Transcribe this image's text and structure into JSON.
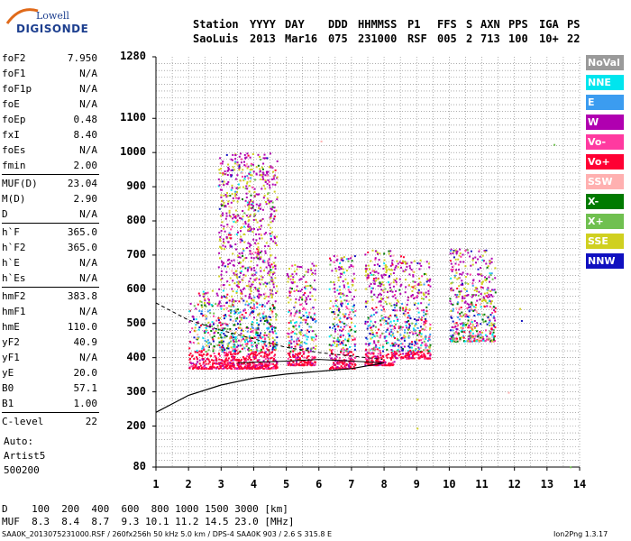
{
  "logo": {
    "line1": "Lowell",
    "line2": "DIGISONDE"
  },
  "header": {
    "station_label": "Station",
    "station": "SaoLuis",
    "yyyy_label": "YYYY",
    "yyyy": "2013",
    "day_label": "DAY",
    "day": "Mar16",
    "ddd_label": "DDD",
    "ddd": "075",
    "hhmmss_label": "HHMMSS",
    "hhmmss": "231000",
    "p1_label": "P1",
    "p1": "RSF",
    "ffs_label": "FFS",
    "ffs": "005",
    "s_label": "S",
    "s": "2",
    "axn_label": "AXN",
    "axn": "713",
    "pps_label": "PPS",
    "pps": "100",
    "iga_label": "IGA",
    "iga": "10+",
    "ps_label": "PS",
    "ps": "22"
  },
  "params": [
    {
      "k": "foF2",
      "v": "7.950"
    },
    {
      "k": "foF1",
      "v": "N/A"
    },
    {
      "k": "foF1p",
      "v": "N/A"
    },
    {
      "k": "foE",
      "v": "N/A"
    },
    {
      "k": "foEp",
      "v": "0.48"
    },
    {
      "k": "fxI",
      "v": "8.40"
    },
    {
      "k": "foEs",
      "v": "N/A"
    },
    {
      "k": "fmin",
      "v": "2.00"
    },
    {
      "k": "MUF(D)",
      "v": "23.04"
    },
    {
      "k": "M(D)",
      "v": "2.90"
    },
    {
      "k": "D",
      "v": "N/A"
    },
    {
      "k": "h`F",
      "v": "365.0"
    },
    {
      "k": "h`F2",
      "v": "365.0"
    },
    {
      "k": "h`E",
      "v": "N/A"
    },
    {
      "k": "h`Es",
      "v": "N/A"
    },
    {
      "k": "hmF2",
      "v": "383.8"
    },
    {
      "k": "hmF1",
      "v": "N/A"
    },
    {
      "k": "hmE",
      "v": "110.0"
    },
    {
      "k": "yF2",
      "v": "40.9"
    },
    {
      "k": "yF1",
      "v": "N/A"
    },
    {
      "k": "yE",
      "v": "20.0"
    },
    {
      "k": "B0",
      "v": "57.1"
    },
    {
      "k": "B1",
      "v": "1.00"
    },
    {
      "k": "C-level",
      "v": "22"
    }
  ],
  "auto": {
    "line1": "Auto:",
    "line2": "Artist5",
    "line3": "500200"
  },
  "legend": [
    {
      "label": "NoVal",
      "bg": "#9a9a9a",
      "fg": "#ffffff"
    },
    {
      "label": "NNE",
      "bg": "#00e5ee",
      "fg": "#ffffff"
    },
    {
      "label": "E",
      "bg": "#3b9cf0",
      "fg": "#ffffff"
    },
    {
      "label": "W",
      "bg": "#b000b0",
      "fg": "#ffffff"
    },
    {
      "label": "Vo-",
      "bg": "#ff3aa0",
      "fg": "#ffffff"
    },
    {
      "label": "Vo+",
      "bg": "#ff0033",
      "fg": "#ffffff"
    },
    {
      "label": "SSW",
      "bg": "#ffb0b0",
      "fg": "#ffffff"
    },
    {
      "label": "X-",
      "bg": "#007a00",
      "fg": "#ffffff"
    },
    {
      "label": "X+",
      "bg": "#70c050",
      "fg": "#ffffff"
    },
    {
      "label": "SSE",
      "bg": "#d0d020",
      "fg": "#ffffff"
    },
    {
      "label": "NNW",
      "bg": "#1010c0",
      "fg": "#ffffff"
    }
  ],
  "chart_data": {
    "type": "scatter",
    "xlim": [
      1,
      14
    ],
    "ylim": [
      80,
      1280
    ],
    "x_ticks": [
      "1",
      "2",
      "3",
      "4",
      "5",
      "6",
      "7",
      "8",
      "9",
      "10",
      "11",
      "12",
      "13",
      "14"
    ],
    "y_ticks": [
      "1280",
      "1100",
      "1000",
      "900",
      "800",
      "700",
      "600",
      "500",
      "400",
      "300",
      "200",
      "80"
    ],
    "grid": true,
    "echo_clusters": [
      {
        "f": [
          2.0,
          2.9
        ],
        "h": [
          370,
          600
        ]
      },
      {
        "f": [
          2.9,
          3.9
        ],
        "h": [
          370,
          1000
        ]
      },
      {
        "f": [
          3.9,
          4.7
        ],
        "h": [
          370,
          1000
        ]
      },
      {
        "f": [
          5.0,
          5.9
        ],
        "h": [
          380,
          680
        ]
      },
      {
        "f": [
          6.3,
          7.1
        ],
        "h": [
          370,
          700
        ]
      },
      {
        "f": [
          7.4,
          8.3
        ],
        "h": [
          380,
          720
        ]
      },
      {
        "f": [
          8.3,
          9.4
        ],
        "h": [
          400,
          700
        ]
      },
      {
        "f": [
          10.0,
          11.4
        ],
        "h": [
          450,
          720
        ]
      }
    ],
    "profile_curve": [
      [
        1.0,
        240
      ],
      [
        1.5,
        265
      ],
      [
        2.0,
        290
      ],
      [
        3.0,
        320
      ],
      [
        4.0,
        340
      ],
      [
        5.0,
        352
      ],
      [
        6.0,
        360
      ],
      [
        7.0,
        368
      ],
      [
        7.95,
        383.8
      ]
    ],
    "dashed_trace": [
      [
        1.0,
        560
      ],
      [
        2.0,
        510
      ],
      [
        3.0,
        480
      ],
      [
        4.0,
        455
      ],
      [
        5.0,
        430
      ],
      [
        6.0,
        415
      ],
      [
        7.0,
        405
      ],
      [
        7.95,
        395
      ]
    ],
    "trace_base": [
      [
        3.5,
        385
      ],
      [
        5.0,
        390
      ],
      [
        6.0,
        395
      ],
      [
        8.0,
        385
      ]
    ]
  },
  "bottom": {
    "d_label": "D",
    "d_values": "100  200  400  600  800 1000 1500 3000 [km]",
    "muf_label": "MUF",
    "muf_values": "8.3  8.4  8.7  9.3 10.1 11.2 14.5 23.0 [MHz]"
  },
  "footer": {
    "left": "SAA0K_2013075231000.RSF / 260fx256h 50 kHz 5.0 km / DPS-4 SAA0K 903 / 2.6 S 315.8 E",
    "right": "Ion2Png 1.3.17"
  }
}
